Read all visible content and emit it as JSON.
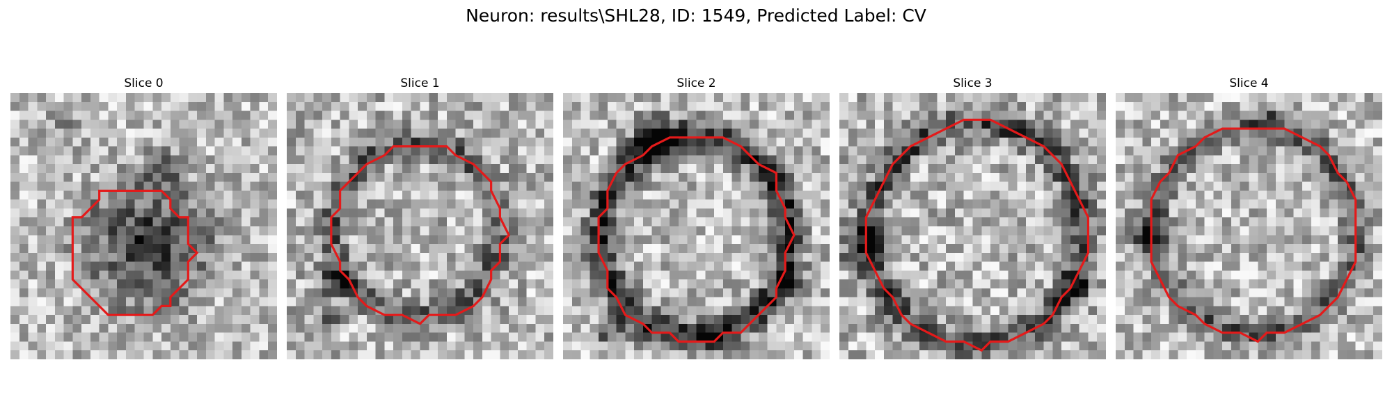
{
  "figure": {
    "title": "Neuron: results\\SHL28, ID: 1549, Predicted Label: CV"
  },
  "panels": [
    {
      "label": "Slice 0"
    },
    {
      "label": "Slice 1"
    },
    {
      "label": "Slice 2"
    },
    {
      "label": "Slice 3"
    },
    {
      "label": "Slice 4"
    }
  ],
  "colors": {
    "background": "#ffffff",
    "roi_outline": "#e41a1a",
    "image_colormap": "grayscale"
  }
}
